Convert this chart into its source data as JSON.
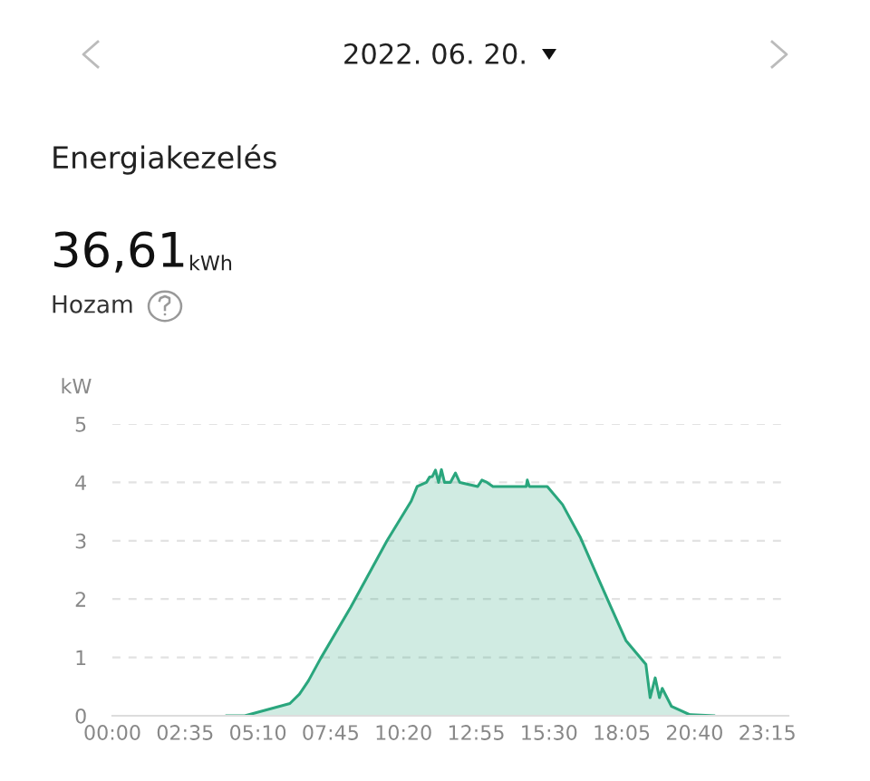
{
  "chart_data": {
    "type": "area",
    "title": "2022. 06. 20.",
    "subtitle": "Energiakezelés",
    "annotations": [
      "36,61",
      "kWh",
      "Hozam"
    ],
    "ylabel": "kW",
    "x": [
      4.06,
      4.7,
      6.3,
      6.64,
      6.96,
      7.39,
      8.46,
      9.75,
      10.61,
      10.82,
      11.15,
      11.26,
      11.36,
      11.47,
      11.58,
      11.68,
      11.79,
      12.0,
      12.18,
      12.33,
      12.97,
      13.12,
      13.3,
      13.51,
      14.69,
      14.73,
      14.8,
      15.44,
      15.98,
      16.62,
      17.27,
      17.7,
      18.23,
      18.94,
      19.09,
      19.27,
      19.42,
      19.52,
      19.85,
      20.49,
      21.35
    ],
    "series": [
      {
        "color": "#2aa67d",
        "values": [
          0,
          0,
          0.21,
          0.37,
          0.6,
          0.98,
          1.86,
          3.0,
          3.68,
          3.93,
          4.0,
          4.09,
          4.1,
          4.21,
          4.0,
          4.22,
          4.0,
          4.0,
          4.16,
          4.0,
          3.93,
          4.04,
          4.0,
          3.93,
          3.93,
          4.04,
          3.93,
          3.93,
          3.62,
          3.05,
          2.33,
          1.86,
          1.29,
          0.88,
          0.31,
          0.65,
          0.31,
          0.47,
          0.16,
          0.02,
          0
        ]
      }
    ],
    "xlim": [
      0,
      24
    ],
    "ylim": [
      0,
      5
    ],
    "yticks": [
      0,
      1,
      2,
      3,
      4,
      5
    ],
    "xticks": [
      {
        "value": 0,
        "label": "00:00"
      },
      {
        "value": 2.5833,
        "label": "02:35"
      },
      {
        "value": 5.1667,
        "label": "05:10"
      },
      {
        "value": 7.75,
        "label": "07:45"
      },
      {
        "value": 10.3333,
        "label": "10:20"
      },
      {
        "value": 12.9167,
        "label": "12:55"
      },
      {
        "value": 15.5,
        "label": "15:30"
      },
      {
        "value": 18.0833,
        "label": "18:05"
      },
      {
        "value": 20.6667,
        "label": "20:40"
      },
      {
        "value": 23.25,
        "label": "23:15"
      }
    ],
    "grid": "y",
    "legend": false
  }
}
